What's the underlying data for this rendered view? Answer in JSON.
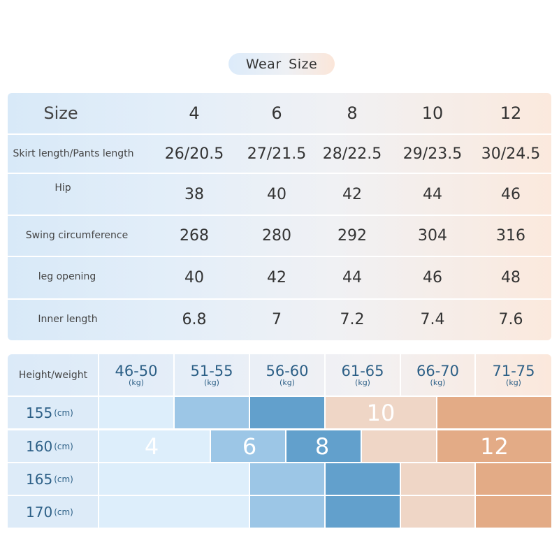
{
  "title": "Wear  Size",
  "size_table": {
    "header_label": "Size",
    "sizes": [
      "4",
      "6",
      "8",
      "10",
      "12"
    ],
    "rows": [
      {
        "label": "Skirt length/Pants length",
        "values": [
          "26/20.5",
          "27/21.5",
          "28/22.5",
          "29/23.5",
          "30/24.5"
        ]
      },
      {
        "label": "Hip",
        "values": [
          "38",
          "40",
          "42",
          "44",
          "46"
        ]
      },
      {
        "label": "Swing circumference",
        "values": [
          "268",
          "280",
          "292",
          "304",
          "316"
        ]
      },
      {
        "label": "leg opening",
        "values": [
          "40",
          "42",
          "44",
          "46",
          "48"
        ]
      },
      {
        "label": "Inner length",
        "values": [
          "6.8",
          "7",
          "7.2",
          "7.4",
          "7.6"
        ]
      }
    ]
  },
  "fit_table": {
    "header_label": "Height/weight",
    "weight_unit": "(kg)",
    "height_unit": "(cm)",
    "weights": [
      "46-50",
      "51-55",
      "56-60",
      "61-65",
      "66-70",
      "71-75"
    ],
    "heights": [
      "155",
      "160",
      "165",
      "170"
    ],
    "size_labels": {
      "s4": "4",
      "s6": "6",
      "s8": "8",
      "s10": "10",
      "s12": "12"
    },
    "colors": {
      "size4": "#ddeefb",
      "size6": "#9cc6e6",
      "size8": "#62a0cc",
      "size10": "#efd6c6",
      "size12": "#e3ab86"
    }
  }
}
